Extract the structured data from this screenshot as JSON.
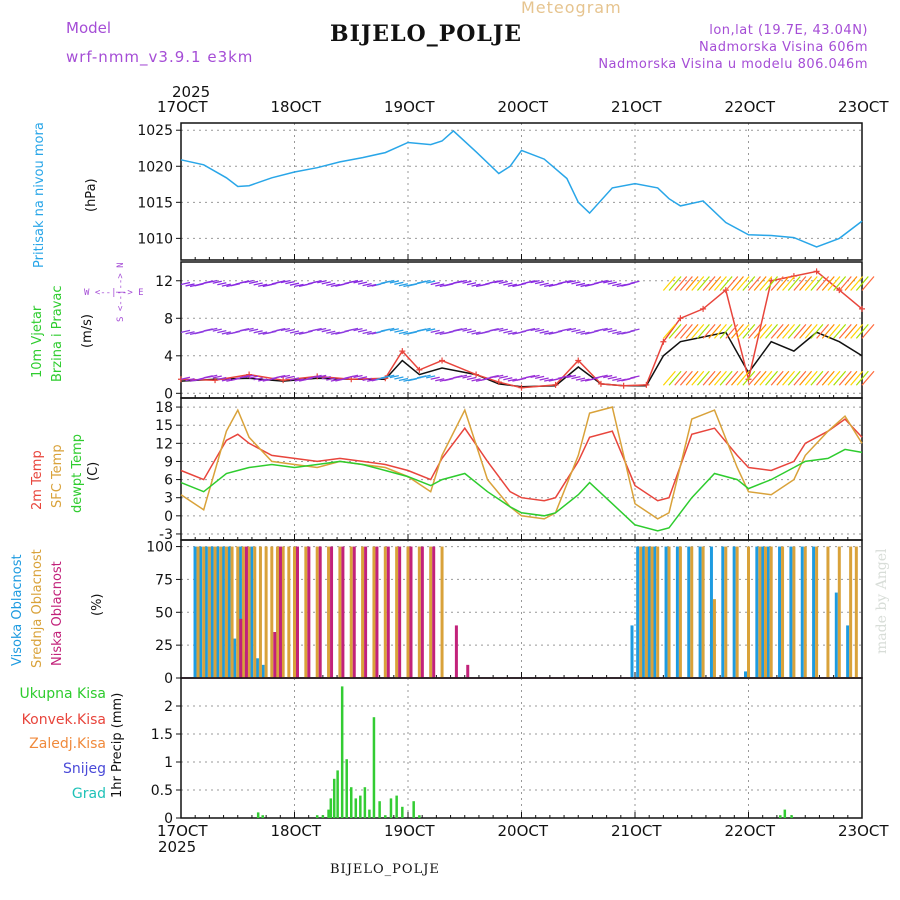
{
  "header": {
    "model_label": "Model",
    "model_name": "wrf-nmm_v3.9.1  e3km",
    "title": "Meteogram",
    "station": "BIJELO_POLJE",
    "lonlat": "lon,lat (19.7E, 43.04N)",
    "elevation": "Nadmorska Visina 606m",
    "model_elevation": "Nadmorska Visina u modelu 806.046m",
    "credit": "made by Angel",
    "footer_station": "BIJELO_POLJE"
  },
  "colors": {
    "pressure": "#29a6e8",
    "temp2m": "#e8453c",
    "sfc": "#d9a23a",
    "dewpt": "#2ecc2e",
    "precip": "#33cc33",
    "high": "#1e9be0",
    "mid": "#d9a23a",
    "low": "#c2227a",
    "wind": "#111111",
    "gust": "#e8453c",
    "label_purple": "#a54dd6",
    "label_tan": "#e6c48f"
  },
  "time_axis": {
    "year": "2025",
    "days": [
      "17OCT",
      "18OCT",
      "19OCT",
      "20OCT",
      "21OCT",
      "22OCT",
      "23OCT"
    ]
  },
  "chart_data": [
    {
      "type": "line",
      "id": "pressure",
      "ylabel": "Pritisak na nivou mora",
      "unit": "(hPa)",
      "ylim": [
        1007,
        1026
      ],
      "yticks": [
        1010,
        1015,
        1020,
        1025
      ],
      "x": [
        0,
        0.2,
        0.4,
        0.5,
        0.6,
        0.8,
        1.0,
        1.2,
        1.4,
        1.6,
        1.8,
        2.0,
        2.2,
        2.3,
        2.4,
        2.6,
        2.8,
        2.9,
        3.0,
        3.2,
        3.4,
        3.5,
        3.6,
        3.8,
        4.0,
        4.2,
        4.3,
        4.4,
        4.6,
        4.8,
        5.0,
        5.2,
        5.4,
        5.6,
        5.8,
        6.0
      ],
      "series": [
        {
          "name": "MSLP",
          "values": [
            1020.9,
            1020.2,
            1018.4,
            1017.2,
            1017.3,
            1018.4,
            1019.2,
            1019.8,
            1020.6,
            1021.2,
            1021.9,
            1023.3,
            1023.0,
            1023.5,
            1024.9,
            1022.0,
            1019.0,
            1020.0,
            1022.2,
            1021.0,
            1018.3,
            1015.0,
            1013.5,
            1017.0,
            1017.6,
            1017.0,
            1015.5,
            1014.5,
            1015.2,
            1012.2,
            1010.5,
            1010.4,
            1010.1,
            1008.8,
            1010.0,
            1012.4
          ]
        }
      ]
    },
    {
      "type": "line",
      "id": "wind",
      "ylabel": "10m Vjetar",
      "ylabel2": "Brzina i Pravac",
      "unit": "(m/s)",
      "compass": "W <--|--> E",
      "compass_v": "S <--|--> N",
      "ylim": [
        -0.5,
        14
      ],
      "yticks": [
        0,
        4,
        8,
        12
      ],
      "x": [
        0,
        0.3,
        0.6,
        0.9,
        1.2,
        1.5,
        1.8,
        1.95,
        2.1,
        2.3,
        2.6,
        2.8,
        3.0,
        3.3,
        3.5,
        3.7,
        3.9,
        4.1,
        4.25,
        4.4,
        4.6,
        4.8,
        5.0,
        5.2,
        5.4,
        5.6,
        5.8,
        6.0
      ],
      "series": [
        {
          "name": "wind",
          "values": [
            1.3,
            1.5,
            1.6,
            1.3,
            1.6,
            1.5,
            1.5,
            3.5,
            2.0,
            2.7,
            2.0,
            1.0,
            0.7,
            0.8,
            2.8,
            1.0,
            0.8,
            0.8,
            4.0,
            5.5,
            6.0,
            6.5,
            2.2,
            5.5,
            4.5,
            6.5,
            5.5,
            4.0
          ]
        },
        {
          "name": "gust",
          "values": [
            1.5,
            1.4,
            2.0,
            1.4,
            1.8,
            1.5,
            1.6,
            4.5,
            2.5,
            3.5,
            2.0,
            1.2,
            0.6,
            0.9,
            3.5,
            1.0,
            0.8,
            0.9,
            5.5,
            8.0,
            9.0,
            11.0,
            1.5,
            12.0,
            12.5,
            13.0,
            11.0,
            9.0
          ]
        }
      ]
    },
    {
      "type": "line",
      "id": "temperature",
      "ylabel": "2m Temp",
      "ylabel2": "SFC Temp",
      "ylabel3": "dewpt Temp",
      "unit": "(C)",
      "ylim": [
        -4,
        19.5
      ],
      "yticks": [
        -3,
        0,
        3,
        6,
        9,
        12,
        15,
        18
      ],
      "x": [
        0,
        0.2,
        0.4,
        0.5,
        0.6,
        0.8,
        1.0,
        1.2,
        1.4,
        1.6,
        1.8,
        2.0,
        2.2,
        2.3,
        2.5,
        2.7,
        2.9,
        3.0,
        3.2,
        3.3,
        3.5,
        3.6,
        3.8,
        4.0,
        4.2,
        4.3,
        4.5,
        4.7,
        4.9,
        5.0,
        5.2,
        5.4,
        5.5,
        5.7,
        5.85,
        6.0
      ],
      "series": [
        {
          "name": "2m Temp",
          "values": [
            7.5,
            6.0,
            12.5,
            13.5,
            12.0,
            10.0,
            9.5,
            9.0,
            9.5,
            9.0,
            8.5,
            7.5,
            6.0,
            9.5,
            14.5,
            9.0,
            4.0,
            3.0,
            2.5,
            3.0,
            9.0,
            13.0,
            14.0,
            5.0,
            2.5,
            3.0,
            13.5,
            14.5,
            10.0,
            8.0,
            7.5,
            9.0,
            12.0,
            14.0,
            16.0,
            13.0
          ]
        },
        {
          "name": "SFC Temp",
          "values": [
            3.5,
            1.0,
            14.0,
            17.5,
            13.0,
            9.0,
            8.5,
            8.0,
            9.0,
            8.5,
            8.0,
            6.5,
            4.0,
            10.0,
            17.5,
            6.0,
            1.5,
            0.0,
            -0.5,
            0.5,
            10.0,
            17.0,
            18.0,
            2.0,
            -0.5,
            0.5,
            16.0,
            17.5,
            8.0,
            4.0,
            3.5,
            6.0,
            10.0,
            14.0,
            16.5,
            12.0
          ]
        },
        {
          "name": "dewpt Temp",
          "values": [
            5.5,
            4.0,
            7.0,
            7.5,
            8.0,
            8.5,
            8.0,
            8.5,
            9.0,
            8.5,
            7.5,
            6.5,
            5.0,
            6.0,
            7.0,
            4.0,
            1.5,
            0.5,
            0.0,
            0.5,
            3.5,
            5.5,
            2.0,
            -1.5,
            -2.5,
            -2.0,
            3.0,
            7.0,
            6.0,
            4.5,
            6.0,
            8.0,
            9.0,
            9.5,
            11.0,
            10.5
          ]
        }
      ]
    },
    {
      "type": "bar",
      "id": "clouds",
      "ylabel": "Visoka Oblacnost",
      "ylabel2": "Srednja Oblacnost",
      "ylabel3": "Niska Oblacnost",
      "unit": "(%)",
      "ylim": [
        0,
        105
      ],
      "yticks": [
        0,
        25,
        50,
        75,
        100
      ],
      "x": [
        0.15,
        0.2,
        0.25,
        0.3,
        0.35,
        0.4,
        0.45,
        0.5,
        0.55,
        0.6,
        0.65,
        0.7,
        0.75,
        0.8,
        0.85,
        0.9,
        0.95,
        1.0,
        1.1,
        1.2,
        1.3,
        1.4,
        1.5,
        1.6,
        1.7,
        1.8,
        1.9,
        2.0,
        2.1,
        2.2,
        2.3,
        2.4,
        2.5,
        4.0,
        4.05,
        4.1,
        4.15,
        4.2,
        4.3,
        4.4,
        4.5,
        4.6,
        4.7,
        4.8,
        4.9,
        5.0,
        5.1,
        5.15,
        5.2,
        5.3,
        5.4,
        5.5,
        5.6,
        5.7,
        5.8,
        5.9,
        5.95
      ],
      "series": [
        {
          "name": "Visoka",
          "values": [
            100,
            100,
            100,
            100,
            100,
            100,
            100,
            30,
            100,
            20,
            100,
            15,
            10,
            0,
            0,
            0,
            0,
            0,
            0,
            0,
            0,
            0,
            0,
            0,
            0,
            0,
            0,
            0,
            0,
            0,
            0,
            0,
            0,
            40,
            100,
            100,
            100,
            100,
            100,
            100,
            100,
            100,
            100,
            100,
            100,
            5,
            100,
            100,
            100,
            100,
            100,
            100,
            100,
            0,
            65,
            40,
            0
          ]
        },
        {
          "name": "Srednja",
          "values": [
            100,
            100,
            100,
            100,
            100,
            100,
            100,
            100,
            100,
            100,
            100,
            100,
            100,
            100,
            100,
            100,
            100,
            100,
            100,
            100,
            100,
            100,
            100,
            100,
            100,
            100,
            100,
            100,
            100,
            100,
            100,
            0,
            0,
            0,
            100,
            100,
            100,
            100,
            100,
            100,
            100,
            100,
            60,
            100,
            100,
            100,
            100,
            100,
            100,
            100,
            100,
            100,
            100,
            100,
            100,
            100,
            100
          ]
        },
        {
          "name": "Niska",
          "values": [
            0,
            0,
            0,
            0,
            0,
            0,
            0,
            45,
            100,
            0,
            0,
            0,
            0,
            35,
            100,
            0,
            0,
            100,
            100,
            100,
            100,
            100,
            100,
            100,
            100,
            100,
            100,
            100,
            100,
            100,
            0,
            40,
            10,
            0,
            0,
            0,
            0,
            0,
            0,
            0,
            0,
            0,
            0,
            0,
            0,
            0,
            0,
            0,
            0,
            0,
            0,
            0,
            0,
            0,
            0,
            0,
            0
          ]
        }
      ]
    },
    {
      "type": "bar",
      "id": "precip",
      "ylabel": "1hr Precip (mm)",
      "legend": [
        "Ukupna Kisa",
        "Konvek.Kisa",
        "Zaledj.Kisa",
        "Snijeg",
        "Grad"
      ],
      "ylim": [
        0,
        2.5
      ],
      "yticks": [
        0,
        0.5,
        1,
        1.5,
        2
      ],
      "x": [
        0.68,
        0.72,
        1.2,
        1.25,
        1.3,
        1.32,
        1.35,
        1.38,
        1.42,
        1.46,
        1.5,
        1.54,
        1.58,
        1.62,
        1.66,
        1.7,
        1.75,
        1.8,
        1.85,
        1.9,
        1.95,
        2.05,
        2.1,
        5.28,
        5.32,
        5.38
      ],
      "series": [
        {
          "name": "Ukupna Kisa",
          "values": [
            0.1,
            0.05,
            0.05,
            0.05,
            0.15,
            0.35,
            0.7,
            0.85,
            2.35,
            1.05,
            0.55,
            0.35,
            0.4,
            0.55,
            0.15,
            1.8,
            0.3,
            0.05,
            0.35,
            0.4,
            0.2,
            0.3,
            0.05,
            0.05,
            0.15,
            0.05
          ]
        }
      ]
    }
  ]
}
